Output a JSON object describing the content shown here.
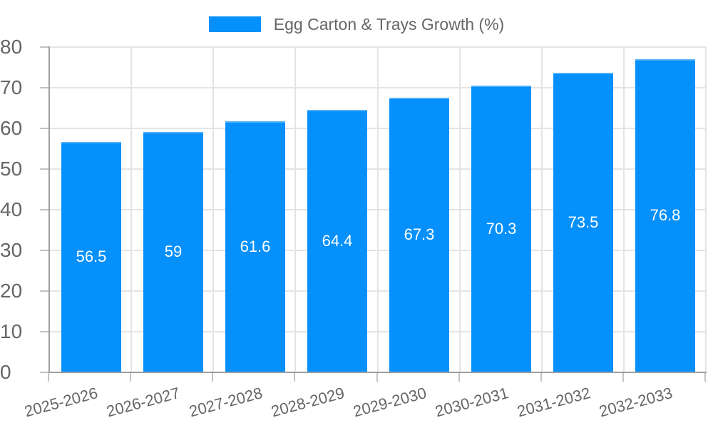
{
  "chart_data": {
    "type": "bar",
    "title": "Egg Carton & Trays Growth (%)",
    "legend_position": "top",
    "categories": [
      "2025-2026",
      "2026-2027",
      "2027-2028",
      "2028-2029",
      "2029-2030",
      "2030-2031",
      "2031-2032",
      "2032-2033"
    ],
    "series": [
      {
        "name": "Egg Carton & Trays Growth (%)",
        "values": [
          56.5,
          59,
          61.6,
          64.4,
          67.3,
          70.3,
          73.5,
          76.8
        ],
        "value_labels": [
          "56.5",
          "59",
          "61.6",
          "64.4",
          "67.3",
          "70.3",
          "73.5",
          "76.8"
        ]
      }
    ],
    "xlabel": "",
    "ylabel": "",
    "ylim": [
      0,
      80
    ],
    "yticks": [
      0,
      10,
      20,
      30,
      40,
      50,
      60,
      70,
      80
    ],
    "ytick_labels": [
      "0",
      "10",
      "20",
      "30",
      "40",
      "50",
      "60",
      "70",
      "80"
    ],
    "grid": true,
    "colors": {
      "bar": "#0590FB",
      "value_label": "#FFFFFF",
      "axis_text": "#666666",
      "grid_line": "#E4E4E4",
      "axis_line": "#9E9E9E",
      "tick_mark": "#C2C2C2",
      "background": "#FFFFFF"
    }
  }
}
